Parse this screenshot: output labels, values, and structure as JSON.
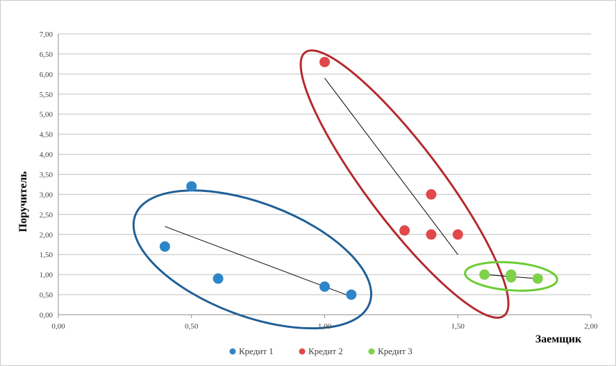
{
  "chart_data": {
    "type": "scatter",
    "xlabel": "Заемщик",
    "ylabel": "Поручитель",
    "xlim": [
      0,
      2
    ],
    "ylim": [
      0,
      7
    ],
    "x_ticks": [
      "0,00",
      "0,50",
      "1,00",
      "1,50",
      "2,00"
    ],
    "y_ticks": [
      "0,00",
      "0,50",
      "1,00",
      "1,50",
      "2,00",
      "2,50",
      "3,00",
      "3,50",
      "4,00",
      "4,50",
      "5,00",
      "5,50",
      "6,00",
      "6,50",
      "7,00"
    ],
    "grid": "horizontal",
    "legend_position": "bottom",
    "series": [
      {
        "name": "Кредит 1",
        "color": "#2e86c8",
        "points": [
          [
            0.4,
            1.7
          ],
          [
            0.5,
            3.2
          ],
          [
            0.6,
            0.9
          ],
          [
            1.0,
            0.7
          ],
          [
            1.1,
            0.5
          ]
        ],
        "trend": [
          [
            0.4,
            2.2
          ],
          [
            1.1,
            0.45
          ]
        ],
        "ellipse_color": "#1f5f96"
      },
      {
        "name": "Кредит 2",
        "color": "#e0484c",
        "points": [
          [
            1.0,
            6.3
          ],
          [
            1.3,
            2.1
          ],
          [
            1.4,
            3.0
          ],
          [
            1.4,
            2.0
          ],
          [
            1.5,
            2.0
          ]
        ],
        "trend": [
          [
            1.0,
            5.9
          ],
          [
            1.5,
            1.5
          ]
        ],
        "ellipse_color": "#b32a2f"
      },
      {
        "name": "Кредит 3",
        "color": "#7fd14b",
        "points": [
          [
            1.6,
            1.0
          ],
          [
            1.7,
            1.0
          ],
          [
            1.7,
            0.93
          ],
          [
            1.8,
            0.9
          ]
        ],
        "trend": [
          [
            1.6,
            1.0
          ],
          [
            1.8,
            0.9
          ]
        ],
        "ellipse_color": "#6ccc33"
      }
    ]
  }
}
